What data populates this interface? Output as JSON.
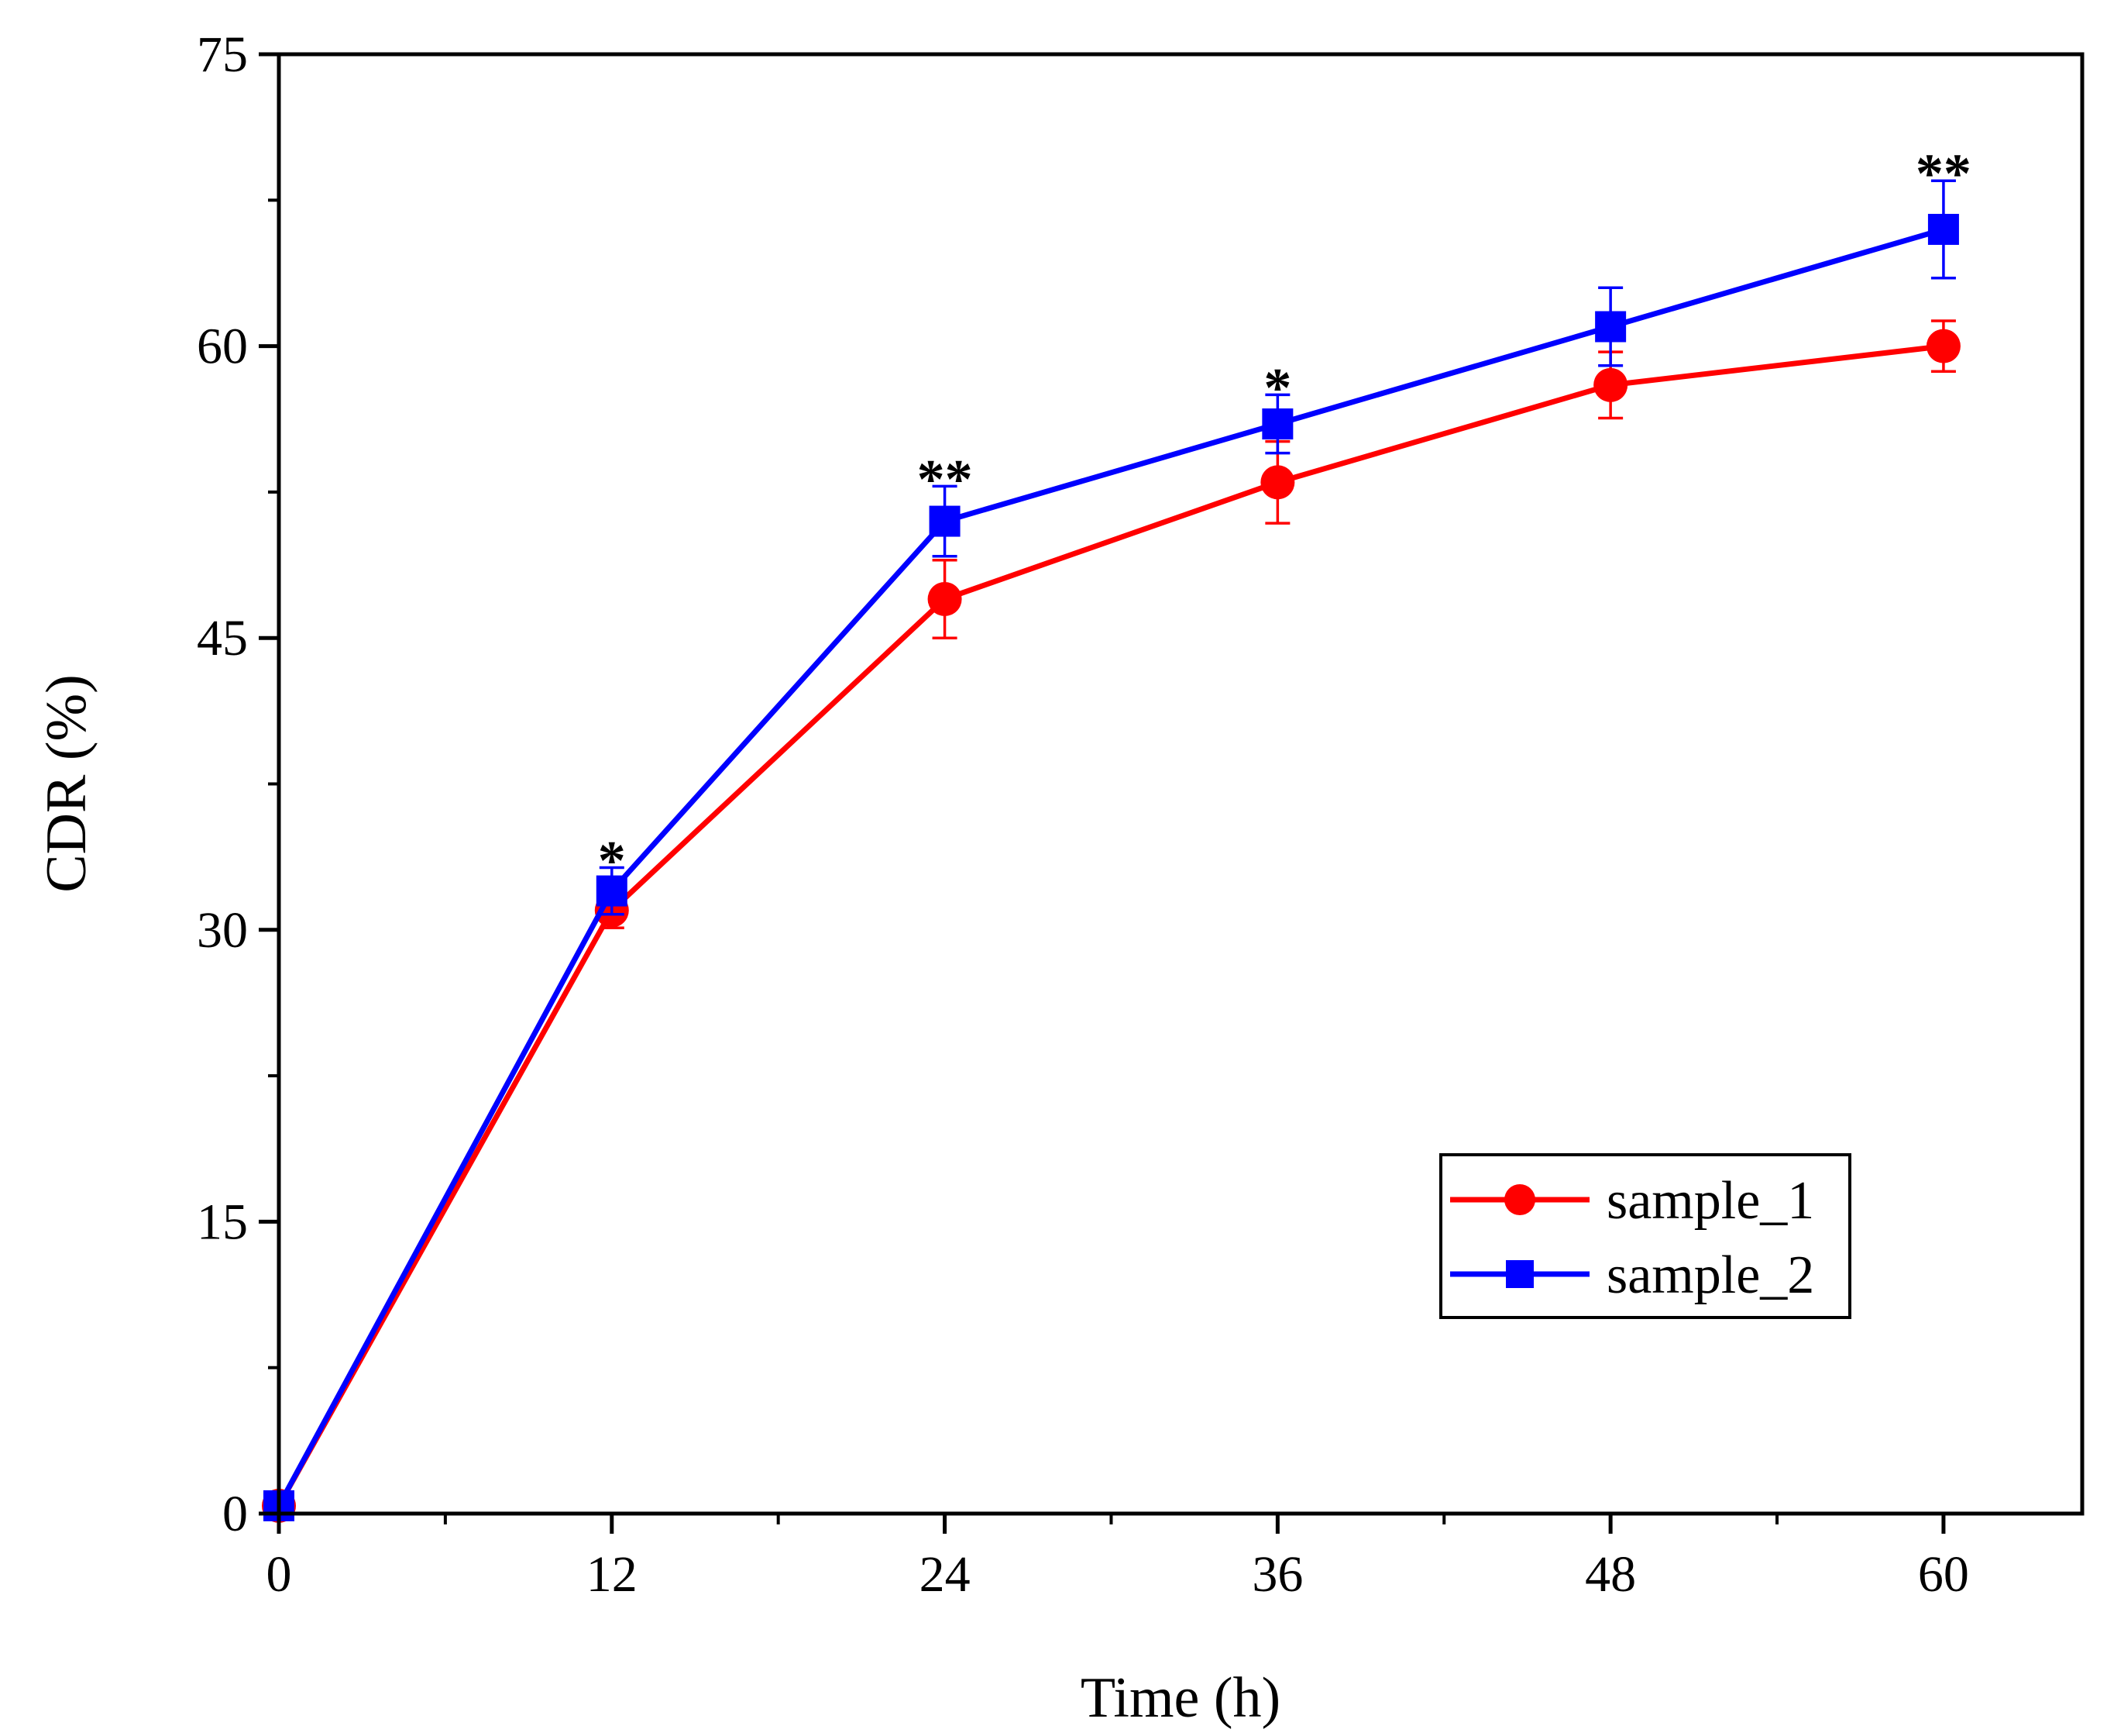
{
  "chart_data": {
    "type": "line",
    "title": "",
    "xlabel": "Time (h)",
    "ylabel": "CDR (%)",
    "xlim": [
      0,
      65
    ],
    "ylim": [
      0,
      75
    ],
    "x_ticks": [
      0,
      12,
      24,
      36,
      48,
      60
    ],
    "x_minor_ticks": [
      6,
      18,
      30,
      42,
      54
    ],
    "y_ticks": [
      0,
      15,
      30,
      45,
      60,
      75
    ],
    "y_minor_ticks": [
      7.5,
      22.5,
      37.5,
      52.5,
      67.5
    ],
    "grid": false,
    "legend_position": "bottom-right",
    "series": [
      {
        "name": "sample_1",
        "color": "#ff0000",
        "marker": "circle",
        "x": [
          0,
          12,
          24,
          36,
          48,
          60
        ],
        "y": [
          0.4,
          31,
          47,
          53,
          58,
          60
        ],
        "error": [
          0.4,
          0.9,
          2.0,
          2.1,
          1.7,
          1.3
        ]
      },
      {
        "name": "sample_2",
        "color": "#0000ff",
        "marker": "square",
        "x": [
          0,
          12,
          24,
          36,
          48,
          60
        ],
        "y": [
          0.4,
          32,
          51,
          56,
          61,
          66
        ],
        "error": [
          0.4,
          1.2,
          1.8,
          1.5,
          2.0,
          2.5
        ]
      }
    ],
    "annotations": [
      {
        "x": 12,
        "y": 34.2,
        "text": "*"
      },
      {
        "x": 24,
        "y": 53.8,
        "text": "**"
      },
      {
        "x": 36,
        "y": 58.5,
        "text": "*"
      },
      {
        "x": 60,
        "y": 69.5,
        "text": "**"
      }
    ]
  }
}
